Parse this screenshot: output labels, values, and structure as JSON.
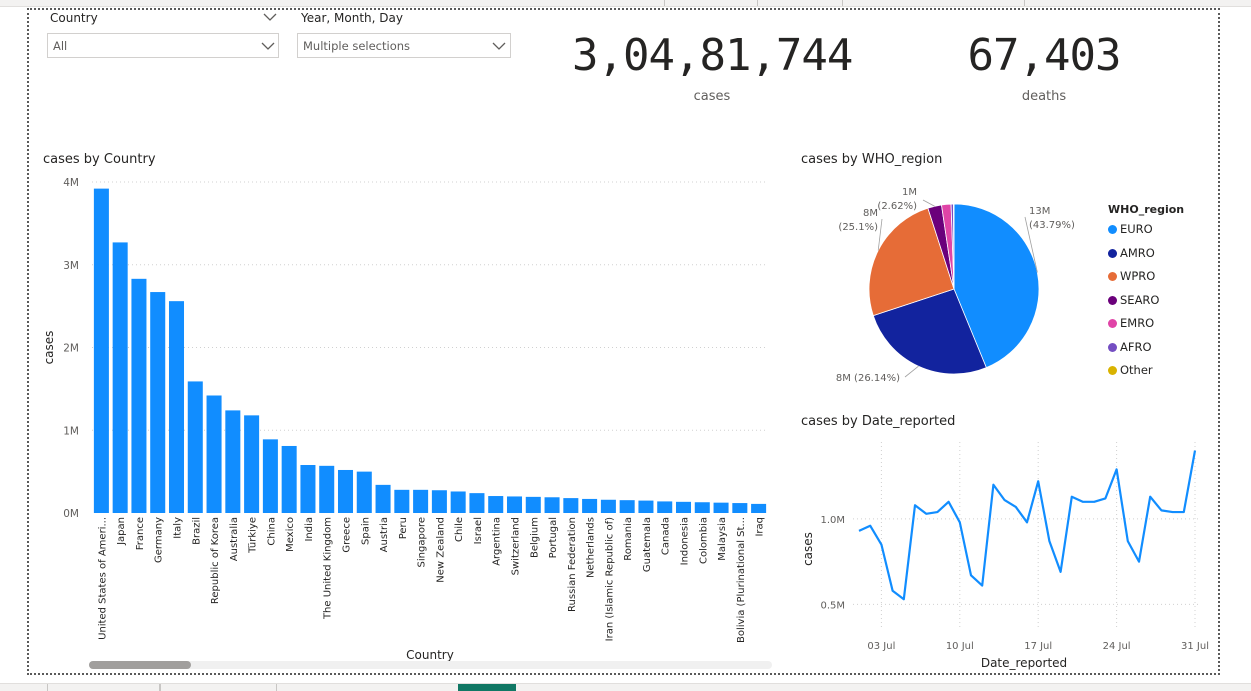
{
  "slicers": {
    "country": {
      "title": "Country",
      "value": "All"
    },
    "date": {
      "title": "Year, Month, Day",
      "value": "Multiple selections"
    }
  },
  "cards": {
    "cases": {
      "value": "3,04,81,744",
      "label": "cases"
    },
    "deaths": {
      "value": "67,403",
      "label": "deaths"
    }
  },
  "bar_visual": {
    "title": "cases by Country"
  },
  "pie_visual": {
    "title": "cases by WHO_region"
  },
  "line_visual": {
    "title": "cases by Date_reported"
  },
  "chart_data": [
    {
      "type": "bar",
      "title": "cases by Country",
      "xlabel": "Country",
      "ylabel": "cases",
      "ylim": [
        0,
        4000000
      ],
      "yticks": [
        0,
        1000000,
        2000000,
        3000000,
        4000000
      ],
      "ytick_labels": [
        "0M",
        "1M",
        "2M",
        "3M",
        "4M"
      ],
      "grid": true,
      "color": "#118dff",
      "categories": [
        "United States of Ameri...",
        "Japan",
        "France",
        "Germany",
        "Italy",
        "Brazil",
        "Republic of Korea",
        "Australia",
        "Türkiye",
        "China",
        "Mexico",
        "India",
        "The United Kingdom",
        "Greece",
        "Spain",
        "Austria",
        "Peru",
        "Singapore",
        "New Zealand",
        "Chile",
        "Israel",
        "Argentina",
        "Switzerland",
        "Belgium",
        "Portugal",
        "Russian Federation",
        "Netherlands",
        "Iran (Islamic Republic of)",
        "Romania",
        "Guatemala",
        "Canada",
        "Indonesia",
        "Colombia",
        "Malaysia",
        "Bolivia (Plurinational St...",
        "Iraq"
      ],
      "values": [
        3920000,
        3270000,
        2830000,
        2670000,
        2560000,
        1590000,
        1420000,
        1240000,
        1180000,
        890000,
        810000,
        580000,
        570000,
        520000,
        500000,
        340000,
        280000,
        280000,
        275000,
        260000,
        240000,
        205000,
        200000,
        195000,
        190000,
        180000,
        170000,
        160000,
        155000,
        150000,
        140000,
        135000,
        130000,
        125000,
        120000,
        110000
      ]
    },
    {
      "type": "pie",
      "title": "cases by WHO_region",
      "legend_title": "WHO_region",
      "legend_position": "right",
      "slices": [
        {
          "label": "EURO",
          "value": 43.79,
          "color": "#118dff"
        },
        {
          "label": "AMRO",
          "value": 26.14,
          "color": "#12239e"
        },
        {
          "label": "WPRO",
          "value": 25.1,
          "color": "#e66c37"
        },
        {
          "label": "SEARO",
          "value": 2.62,
          "color": "#6b007b"
        },
        {
          "label": "EMRO",
          "value": 1.8,
          "color": "#e044a7"
        },
        {
          "label": "AFRO",
          "value": 0.45,
          "color": "#744ec2"
        },
        {
          "label": "Other",
          "value": 0.1,
          "color": "#d9b300"
        }
      ],
      "data_labels": [
        {
          "line1": "13M",
          "line2": "(43.79%)"
        },
        {
          "line1": "8M (26.14%)",
          "line2": ""
        },
        {
          "line1": "8M",
          "line2": "(25.1%)"
        },
        {
          "line1": "1M",
          "line2": "(2.62%)"
        }
      ]
    },
    {
      "type": "line",
      "title": "cases by Date_reported",
      "xlabel": "Date_reported",
      "ylabel": "cases",
      "ylim": [
        350000,
        1450000
      ],
      "yticks": [
        500000,
        1000000
      ],
      "ytick_labels": [
        "0.5M",
        "1.0M"
      ],
      "xtick_labels": [
        "03 Jul",
        "10 Jul",
        "17 Jul",
        "24 Jul",
        "31 Jul"
      ],
      "xtick_days": [
        3,
        10,
        17,
        24,
        31
      ],
      "grid": true,
      "color": "#118dff",
      "x_days": [
        1,
        2,
        3,
        4,
        5,
        6,
        7,
        8,
        9,
        10,
        11,
        12,
        13,
        14,
        15,
        16,
        17,
        18,
        19,
        20,
        21,
        22,
        23,
        24,
        25,
        26,
        27,
        28,
        29,
        30,
        31
      ],
      "values": [
        930000,
        960000,
        850000,
        580000,
        530000,
        1080000,
        1030000,
        1040000,
        1100000,
        980000,
        670000,
        610000,
        1200000,
        1110000,
        1070000,
        980000,
        1220000,
        870000,
        690000,
        1130000,
        1100000,
        1100000,
        1120000,
        1290000,
        870000,
        750000,
        1130000,
        1050000,
        1040000,
        1040000,
        1400000
      ]
    }
  ]
}
